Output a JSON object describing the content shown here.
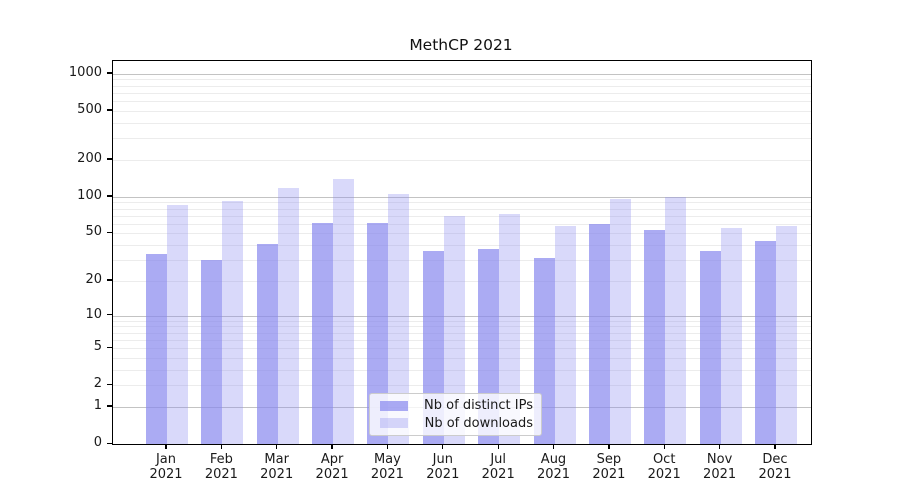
{
  "title": "MethCP 2021",
  "chart_data": {
    "type": "bar",
    "title": "MethCP 2021",
    "categories": [
      "Jan 2021",
      "Feb 2021",
      "Mar 2021",
      "Apr 2021",
      "May 2021",
      "Jun 2021",
      "Jul 2021",
      "Aug 2021",
      "Sep 2021",
      "Oct 2021",
      "Nov 2021",
      "Dec 2021"
    ],
    "series": [
      {
        "name": "Nb of distinct IPs",
        "color": "rgba(136,136,238,0.70)",
        "values": [
          34,
          30,
          41,
          61,
          61,
          36,
          37,
          31,
          60,
          53,
          36,
          43
        ]
      },
      {
        "name": "Nb of downloads",
        "color": "rgba(136,136,238,0.32)",
        "values": [
          86,
          92,
          117,
          139,
          105,
          69,
          72,
          57,
          96,
          100,
          55,
          58
        ]
      }
    ],
    "xlabel": "",
    "ylabel": "",
    "yscale": "log1p",
    "yticks": [
      0,
      1,
      2,
      5,
      10,
      20,
      50,
      100,
      200,
      500,
      1000
    ],
    "ylim": [
      0,
      1270
    ],
    "grid": true,
    "legend_position": "lower-center-inside"
  },
  "colors": {
    "bar_ips": "rgba(136,136,238,0.70)",
    "bar_downloads": "rgba(136,136,238,0.32)",
    "major_grid": "#c3c3c3",
    "minor_grid": "#ececec",
    "spine": "#000000",
    "text": "#1a1a1a",
    "legend_border": "#cccccc"
  }
}
